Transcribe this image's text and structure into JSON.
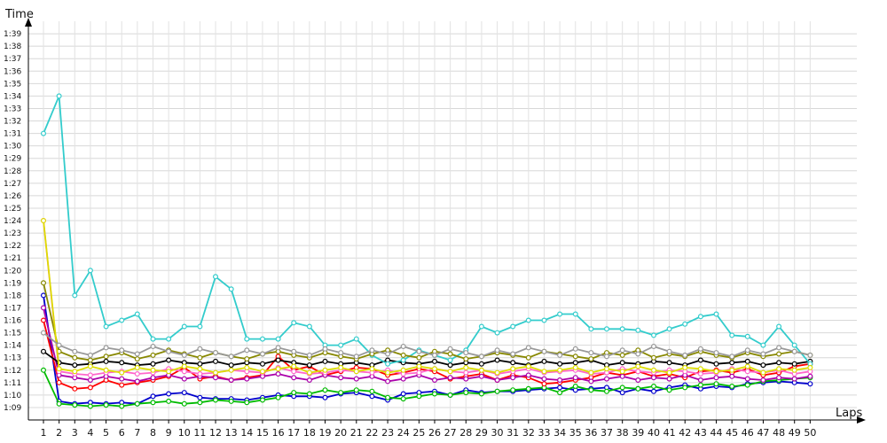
{
  "chart_data": {
    "type": "line",
    "xlabel": "Laps",
    "ylabel": "Time",
    "x": [
      1,
      2,
      3,
      4,
      5,
      6,
      7,
      8,
      9,
      10,
      11,
      12,
      13,
      14,
      15,
      16,
      17,
      18,
      19,
      20,
      21,
      22,
      23,
      24,
      25,
      26,
      27,
      28,
      29,
      30,
      31,
      32,
      33,
      34,
      35,
      36,
      37,
      38,
      39,
      40,
      41,
      42,
      43,
      44,
      45,
      46,
      47,
      48,
      49,
      50
    ],
    "x_tick_labels": [
      "1",
      "2",
      "3",
      "4",
      "5",
      "6",
      "7",
      "8",
      "9",
      "10",
      "11",
      "12",
      "13",
      "14",
      "15",
      "16",
      "17",
      "18",
      "19",
      "20",
      "21",
      "22",
      "23",
      "24",
      "25",
      "26",
      "27",
      "28",
      "29",
      "30",
      "31",
      "32",
      "33",
      "34",
      "35",
      "36",
      "37",
      "38",
      "39",
      "40",
      "41",
      "42",
      "43",
      "44",
      "45",
      "46",
      "47",
      "48",
      "49",
      "50"
    ],
    "y_tick_labels": [
      "1:09",
      "1:10",
      "1:11",
      "1:12",
      "1:13",
      "1:14",
      "1:15",
      "1:16",
      "1:17",
      "1:18",
      "1:19",
      "1:20",
      "1:21",
      "1:22",
      "1:23",
      "1:24",
      "1:25",
      "1:26",
      "1:27",
      "1:28",
      "1:29",
      "1:30",
      "1:31",
      "1:32",
      "1:33",
      "1:34",
      "1:35",
      "1:36",
      "1:37",
      "1:38",
      "1:39"
    ],
    "y_unit": "seconds",
    "ylim": [
      68,
      100
    ],
    "grid": true,
    "legend": "none",
    "series": [
      {
        "color": "#0000cc",
        "values": [
          78,
          69.5,
          69.3,
          69.4,
          69.3,
          69.4,
          69.3,
          69.9,
          70.1,
          70.2,
          69.8,
          69.7,
          69.7,
          69.6,
          69.8,
          70.0,
          69.9,
          69.9,
          69.8,
          70.1,
          70.2,
          69.9,
          69.6,
          70.1,
          70.2,
          70.3,
          70.0,
          70.4,
          70.2,
          70.3,
          70.3,
          70.4,
          70.5,
          70.6,
          70.4,
          70.5,
          70.6,
          70.2,
          70.5,
          70.3,
          70.6,
          70.8,
          70.5,
          70.7,
          70.6,
          70.9,
          71.0,
          71.1,
          71.0,
          70.9
        ]
      },
      {
        "color": "#00bb00",
        "values": [
          72,
          69.3,
          69.2,
          69.1,
          69.2,
          69.1,
          69.3,
          69.4,
          69.5,
          69.3,
          69.4,
          69.6,
          69.5,
          69.4,
          69.6,
          69.8,
          70.2,
          70.1,
          70.4,
          70.2,
          70.4,
          70.3,
          69.8,
          69.7,
          69.9,
          70.1,
          70.0,
          70.2,
          70.1,
          70.3,
          70.4,
          70.5,
          70.6,
          70.2,
          70.7,
          70.4,
          70.3,
          70.6,
          70.5,
          70.7,
          70.4,
          70.6,
          70.8,
          70.9,
          70.7,
          70.8,
          71.1,
          71.2,
          71.3,
          71.4
        ]
      },
      {
        "color": "#ff0000",
        "values": [
          76,
          71.0,
          70.5,
          70.6,
          71.2,
          70.8,
          71.0,
          71.2,
          71.5,
          72.2,
          71.3,
          71.5,
          71.2,
          71.4,
          71.6,
          73.1,
          72.0,
          72.3,
          71.6,
          71.9,
          72.2,
          72.1,
          71.6,
          71.8,
          72.1,
          71.9,
          71.3,
          71.5,
          71.7,
          71.2,
          71.6,
          71.4,
          70.9,
          71.0,
          71.2,
          71.4,
          71.8,
          71.6,
          71.9,
          71.5,
          71.7,
          71.4,
          71.9,
          72.0,
          71.8,
          72.1,
          71.6,
          71.8,
          72.3,
          72.5
        ]
      },
      {
        "color": "#aa00aa",
        "values": [
          77,
          71.6,
          71.4,
          71.2,
          71.5,
          71.3,
          71.1,
          71.4,
          71.6,
          71.3,
          71.5,
          71.4,
          71.2,
          71.3,
          71.5,
          71.7,
          71.4,
          71.2,
          71.6,
          71.4,
          71.3,
          71.5,
          71.1,
          71.3,
          71.6,
          71.2,
          71.4,
          71.3,
          71.5,
          71.2,
          71.4,
          71.6,
          71.3,
          71.2,
          71.4,
          71.1,
          71.3,
          71.5,
          71.2,
          71.4,
          71.3,
          71.6,
          71.2,
          71.4,
          71.5,
          71.3,
          71.2,
          71.4,
          71.3,
          71.5
        ]
      },
      {
        "color": "#ff66cc",
        "values": [
          84,
          71.9,
          71.7,
          71.6,
          71.8,
          71.9,
          71.7,
          71.8,
          72.1,
          71.9,
          71.7,
          71.8,
          72.0,
          71.9,
          71.8,
          72.2,
          71.9,
          71.7,
          71.8,
          72.0,
          71.9,
          71.8,
          72.0,
          71.7,
          71.8,
          72.1,
          71.9,
          71.8,
          72.0,
          71.7,
          71.9,
          72.1,
          71.8,
          71.9,
          72.0,
          71.7,
          71.8,
          72.1,
          71.9,
          71.8,
          72.0,
          71.9,
          71.7,
          71.8,
          72.1,
          71.9,
          71.8,
          72.0,
          71.7,
          71.9
        ]
      },
      {
        "color": "#000000",
        "values": [
          73.5,
          72.6,
          72.4,
          72.5,
          72.7,
          72.6,
          72.4,
          72.5,
          72.8,
          72.6,
          72.5,
          72.7,
          72.4,
          72.6,
          72.5,
          72.8,
          72.6,
          72.4,
          72.7,
          72.5,
          72.6,
          72.4,
          72.8,
          72.6,
          72.5,
          72.7,
          72.4,
          72.6,
          72.5,
          72.8,
          72.6,
          72.4,
          72.7,
          72.5,
          72.6,
          72.8,
          72.4,
          72.6,
          72.5,
          72.7,
          72.6,
          72.4,
          72.8,
          72.5,
          72.6,
          72.7,
          72.4,
          72.6,
          72.5,
          72.7
        ]
      },
      {
        "color": "#33cccc",
        "values": [
          91,
          94,
          78,
          80,
          75.5,
          76,
          76.5,
          74.5,
          74.5,
          75.5,
          75.5,
          79.5,
          78.5,
          74.5,
          74.5,
          74.5,
          75.8,
          75.5,
          74,
          74,
          74.5,
          73.2,
          72.5,
          72.8,
          73.6,
          73.2,
          72.8,
          73.6,
          75.5,
          75.0,
          75.5,
          76.0,
          76.0,
          76.5,
          76.5,
          75.3,
          75.3,
          75.3,
          75.2,
          74.8,
          75.3,
          75.7,
          76.3,
          76.5,
          74.8,
          74.7,
          74.0,
          75.5,
          74.0,
          72.5
        ]
      },
      {
        "color": "#888800",
        "values": [
          79,
          73.5,
          73.0,
          72.8,
          73.1,
          73.4,
          72.9,
          73.2,
          73.6,
          73.3,
          73.0,
          73.4,
          73.1,
          72.9,
          73.3,
          73.5,
          73.2,
          73.0,
          73.4,
          73.1,
          72.9,
          73.3,
          73.6,
          73.2,
          73.0,
          73.5,
          73.3,
          72.9,
          73.1,
          73.4,
          73.2,
          73.0,
          73.5,
          73.3,
          73.1,
          72.9,
          73.4,
          73.2,
          73.6,
          73.0,
          73.3,
          73.1,
          73.5,
          73.2,
          73.0,
          73.4,
          73.1,
          73.3,
          73.5,
          73.2
        ]
      },
      {
        "color": "#dddd00",
        "values": [
          84,
          72.1,
          71.9,
          72.3,
          72.0,
          71.8,
          72.2,
          72.0,
          71.9,
          72.3,
          72.1,
          71.8,
          72.0,
          72.2,
          71.9,
          72.1,
          72.3,
          71.8,
          72.0,
          72.2,
          71.9,
          72.1,
          71.8,
          72.0,
          72.3,
          72.1,
          71.9,
          72.2,
          72.0,
          71.8,
          72.1,
          72.3,
          71.9,
          72.0,
          72.2,
          71.8,
          72.1,
          71.9,
          72.3,
          72.0,
          71.8,
          72.2,
          72.1,
          71.9,
          72.0,
          72.3,
          71.8,
          72.1,
          72.0,
          72.2
        ]
      },
      {
        "color": "#999999",
        "values": [
          75,
          74.0,
          73.5,
          73.2,
          73.8,
          73.6,
          73.3,
          73.9,
          73.5,
          73.2,
          73.7,
          73.4,
          73.1,
          73.6,
          73.3,
          73.8,
          73.5,
          73.2,
          73.7,
          73.4,
          73.1,
          73.6,
          73.3,
          73.9,
          73.5,
          73.2,
          73.7,
          73.4,
          73.1,
          73.6,
          73.3,
          73.8,
          73.5,
          73.2,
          73.7,
          73.4,
          73.1,
          73.6,
          73.3,
          73.9,
          73.5,
          73.2,
          73.7,
          73.4,
          73.1,
          73.6,
          73.3,
          73.8,
          73.5,
          73.2
        ]
      }
    ]
  }
}
